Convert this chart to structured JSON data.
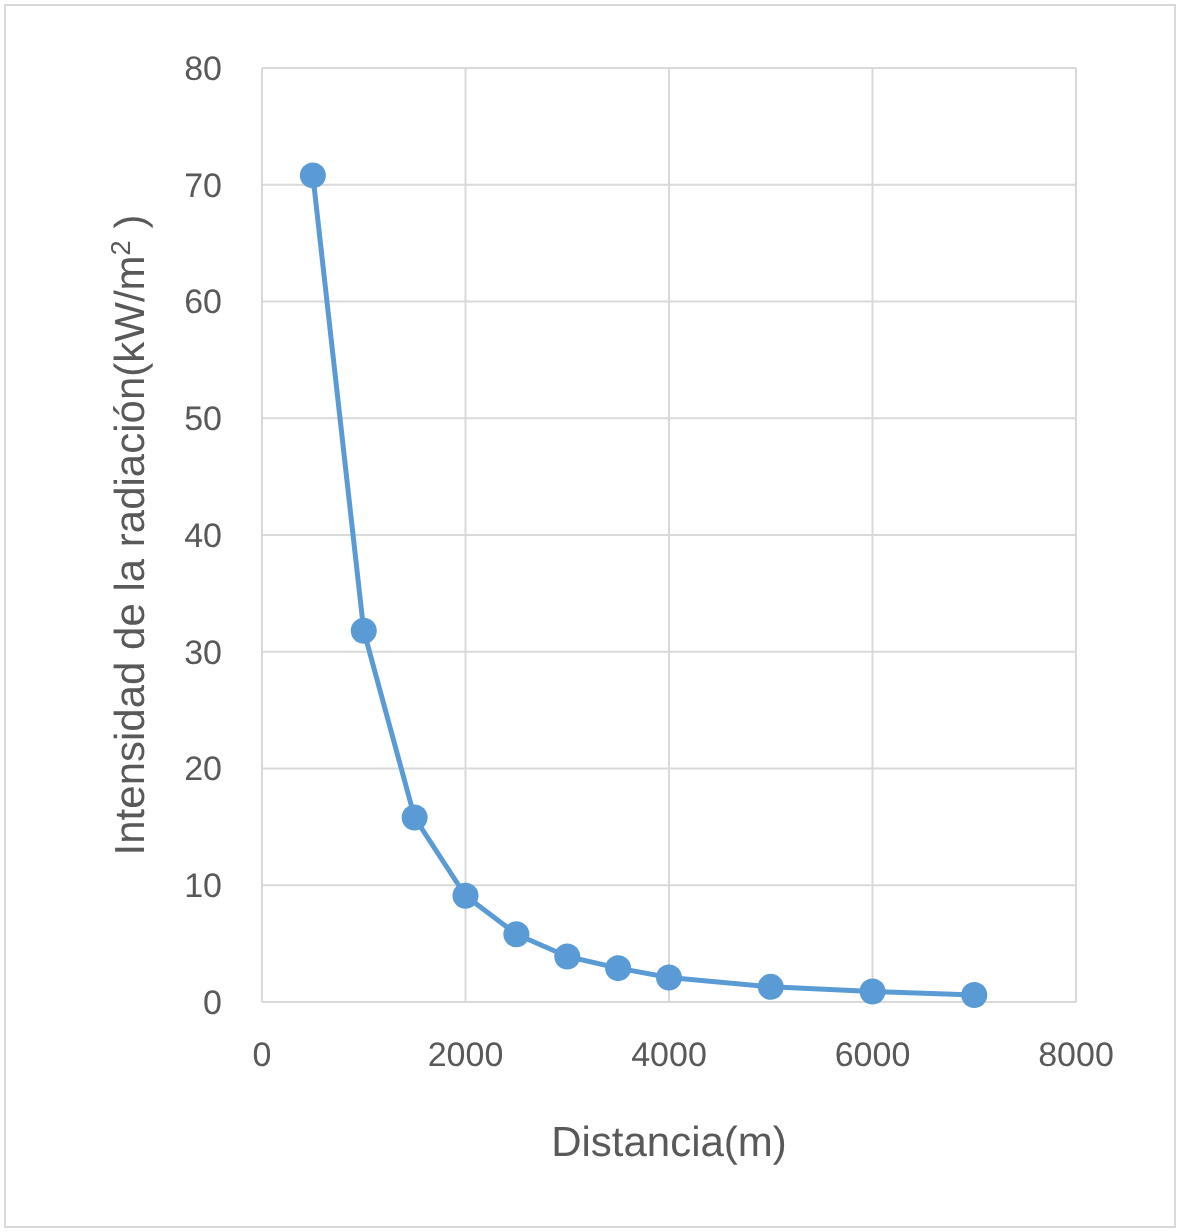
{
  "chart_data": {
    "type": "line",
    "xlabel": "Distancia(m)",
    "ylabel": "Intensidad de la radiación(kW/m$^{2}$ )",
    "x": [
      500,
      1000,
      1500,
      2000,
      2500,
      3000,
      3500,
      4000,
      5000,
      6000,
      7000
    ],
    "series": [
      {
        "color": "#5b9bd5",
        "values": [
          70.8,
          31.8,
          15.8,
          9.1,
          5.8,
          3.9,
          2.9,
          2.1,
          1.3,
          0.9,
          0.6
        ]
      }
    ],
    "xlim": [
      0,
      8000
    ],
    "xticks": [
      0,
      2000,
      4000,
      6000,
      8000
    ],
    "ylim": [
      0,
      80
    ],
    "yticks": [
      0,
      10,
      20,
      30,
      40,
      50,
      60,
      70,
      80
    ],
    "grid": true,
    "marker": "circle",
    "line_style": "solid"
  }
}
